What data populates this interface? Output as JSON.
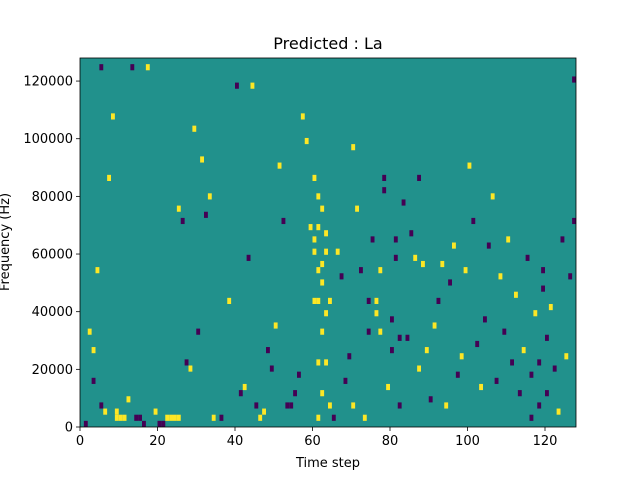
{
  "chart_data": {
    "type": "heatmap",
    "title": "Predicted : La",
    "xlabel": "Time step",
    "ylabel": "Frequency (Hz)",
    "xlim": [
      0,
      128
    ],
    "ylim": [
      0,
      128000
    ],
    "xticks": [
      0,
      20,
      40,
      60,
      80,
      100,
      120
    ],
    "yticks": [
      0,
      20000,
      40000,
      60000,
      80000,
      100000,
      120000
    ],
    "n_time_bins": 128,
    "n_freq_bins": 60,
    "colormap": {
      "-1": "#440154",
      "0": "#21918c",
      "1": "#fde725"
    },
    "background_value": 0,
    "cells": [
      [
        1,
        0,
        -1
      ],
      [
        2,
        15,
        1
      ],
      [
        3,
        7,
        -1
      ],
      [
        3,
        12,
        1
      ],
      [
        4,
        25,
        1
      ],
      [
        5,
        58,
        -1
      ],
      [
        5,
        3,
        -1
      ],
      [
        6,
        2,
        1
      ],
      [
        7,
        40,
        1
      ],
      [
        8,
        50,
        1
      ],
      [
        9,
        1,
        1
      ],
      [
        9,
        2,
        1
      ],
      [
        10,
        1,
        1
      ],
      [
        11,
        1,
        1
      ],
      [
        12,
        4,
        1
      ],
      [
        13,
        58,
        -1
      ],
      [
        14,
        1,
        -1
      ],
      [
        15,
        1,
        -1
      ],
      [
        16,
        0,
        -1
      ],
      [
        17,
        58,
        1
      ],
      [
        19,
        2,
        1
      ],
      [
        20,
        0,
        -1
      ],
      [
        21,
        0,
        -1
      ],
      [
        22,
        1,
        1
      ],
      [
        23,
        1,
        1
      ],
      [
        24,
        1,
        1
      ],
      [
        25,
        1,
        1
      ],
      [
        25,
        35,
        1
      ],
      [
        26,
        33,
        -1
      ],
      [
        27,
        10,
        -1
      ],
      [
        28,
        9,
        1
      ],
      [
        29,
        48,
        1
      ],
      [
        30,
        15,
        -1
      ],
      [
        31,
        43,
        1
      ],
      [
        32,
        34,
        -1
      ],
      [
        33,
        37,
        1
      ],
      [
        34,
        1,
        1
      ],
      [
        36,
        1,
        -1
      ],
      [
        38,
        20,
        1
      ],
      [
        40,
        55,
        -1
      ],
      [
        41,
        5,
        -1
      ],
      [
        42,
        6,
        1
      ],
      [
        43,
        27,
        -1
      ],
      [
        44,
        55,
        1
      ],
      [
        45,
        3,
        -1
      ],
      [
        46,
        1,
        1
      ],
      [
        47,
        2,
        1
      ],
      [
        48,
        12,
        -1
      ],
      [
        49,
        9,
        -1
      ],
      [
        50,
        16,
        1
      ],
      [
        51,
        42,
        1
      ],
      [
        52,
        33,
        -1
      ],
      [
        53,
        3,
        -1
      ],
      [
        54,
        3,
        -1
      ],
      [
        55,
        5,
        -1
      ],
      [
        56,
        8,
        -1
      ],
      [
        57,
        50,
        1
      ],
      [
        58,
        46,
        1
      ],
      [
        59,
        32,
        1
      ],
      [
        60,
        20,
        1
      ],
      [
        60,
        28,
        1
      ],
      [
        60,
        30,
        1
      ],
      [
        60,
        40,
        1
      ],
      [
        61,
        1,
        1
      ],
      [
        61,
        10,
        1
      ],
      [
        61,
        20,
        1
      ],
      [
        61,
        25,
        1
      ],
      [
        61,
        32,
        1
      ],
      [
        61,
        37,
        1
      ],
      [
        62,
        5,
        1
      ],
      [
        62,
        15,
        1
      ],
      [
        62,
        23,
        1
      ],
      [
        62,
        26,
        1
      ],
      [
        62,
        35,
        1
      ],
      [
        63,
        10,
        1
      ],
      [
        63,
        18,
        1
      ],
      [
        63,
        28,
        1
      ],
      [
        63,
        31,
        1
      ],
      [
        64,
        3,
        1
      ],
      [
        64,
        20,
        1
      ],
      [
        65,
        1,
        -1
      ],
      [
        66,
        28,
        1
      ],
      [
        67,
        24,
        -1
      ],
      [
        68,
        7,
        -1
      ],
      [
        69,
        11,
        -1
      ],
      [
        70,
        3,
        1
      ],
      [
        70,
        45,
        1
      ],
      [
        71,
        35,
        1
      ],
      [
        72,
        25,
        -1
      ],
      [
        73,
        1,
        1
      ],
      [
        74,
        15,
        -1
      ],
      [
        74,
        20,
        -1
      ],
      [
        75,
        30,
        -1
      ],
      [
        76,
        18,
        1
      ],
      [
        76,
        20,
        1
      ],
      [
        77,
        15,
        1
      ],
      [
        77,
        25,
        1
      ],
      [
        78,
        38,
        -1
      ],
      [
        78,
        40,
        -1
      ],
      [
        79,
        6,
        1
      ],
      [
        80,
        12,
        -1
      ],
      [
        80,
        17,
        -1
      ],
      [
        81,
        27,
        -1
      ],
      [
        81,
        30,
        -1
      ],
      [
        82,
        3,
        -1
      ],
      [
        82,
        14,
        -1
      ],
      [
        83,
        36,
        -1
      ],
      [
        84,
        14,
        -1
      ],
      [
        85,
        31,
        -1
      ],
      [
        86,
        27,
        1
      ],
      [
        87,
        9,
        1
      ],
      [
        87,
        40,
        -1
      ],
      [
        88,
        26,
        1
      ],
      [
        89,
        12,
        1
      ],
      [
        90,
        4,
        -1
      ],
      [
        91,
        16,
        1
      ],
      [
        92,
        20,
        -1
      ],
      [
        93,
        26,
        1
      ],
      [
        94,
        3,
        1
      ],
      [
        95,
        23,
        -1
      ],
      [
        96,
        29,
        1
      ],
      [
        97,
        8,
        -1
      ],
      [
        98,
        11,
        1
      ],
      [
        99,
        25,
        1
      ],
      [
        100,
        42,
        1
      ],
      [
        101,
        33,
        -1
      ],
      [
        102,
        13,
        -1
      ],
      [
        103,
        6,
        1
      ],
      [
        104,
        17,
        -1
      ],
      [
        105,
        29,
        -1
      ],
      [
        106,
        37,
        1
      ],
      [
        107,
        7,
        -1
      ],
      [
        108,
        24,
        1
      ],
      [
        109,
        15,
        -1
      ],
      [
        110,
        30,
        1
      ],
      [
        111,
        10,
        -1
      ],
      [
        112,
        21,
        1
      ],
      [
        113,
        5,
        -1
      ],
      [
        114,
        12,
        1
      ],
      [
        115,
        27,
        -1
      ],
      [
        116,
        1,
        -1
      ],
      [
        116,
        8,
        -1
      ],
      [
        117,
        18,
        1
      ],
      [
        118,
        3,
        -1
      ],
      [
        118,
        10,
        -1
      ],
      [
        119,
        22,
        -1
      ],
      [
        119,
        25,
        -1
      ],
      [
        120,
        5,
        -1
      ],
      [
        120,
        14,
        -1
      ],
      [
        121,
        19,
        1
      ],
      [
        122,
        9,
        -1
      ],
      [
        123,
        2,
        1
      ],
      [
        124,
        30,
        -1
      ],
      [
        125,
        11,
        1
      ],
      [
        126,
        24,
        -1
      ],
      [
        127,
        56,
        -1
      ],
      [
        127,
        33,
        -1
      ]
    ]
  }
}
